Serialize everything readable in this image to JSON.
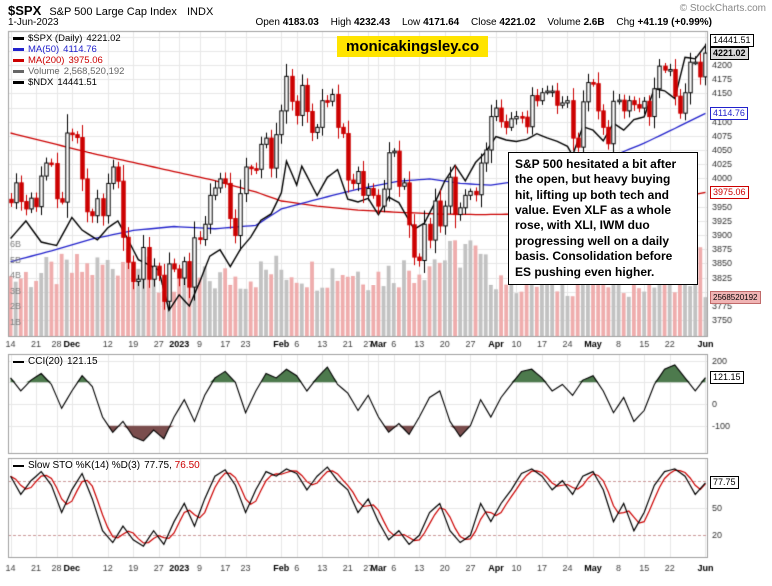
{
  "header": {
    "symbol": "$SPX",
    "name": "S&P 500 Large Cap Index",
    "exchange": "INDX",
    "copyright": "© StockCharts.com",
    "date": "1-Jun-2023",
    "quote": [
      {
        "label": "Open",
        "value": "4183.03"
      },
      {
        "label": "High",
        "value": "4232.43"
      },
      {
        "label": "Low",
        "value": "4171.64"
      },
      {
        "label": "Close",
        "value": "4221.02"
      },
      {
        "label": "Volume",
        "value": "2.6B"
      },
      {
        "label": "Chg",
        "value": "+41.19 (+0.99%)"
      }
    ]
  },
  "watermark": "monicakingsley.co",
  "annotation": "S&P 500 hesitated a bit after the open, but heavy buying hit, lifting up both tech and value. Even XLF as a whole rose, with XLI, IWM duo progressing well on a daily basis. Consolidation before ES pushing even higher.",
  "legend": {
    "main": [
      {
        "label": "$SPX (Daily)",
        "value": "4221.02",
        "color": "#000000"
      },
      {
        "label": "MA(50)",
        "value": "4114.76",
        "color": "#2222cc"
      },
      {
        "label": "MA(200)",
        "value": "3975.06",
        "color": "#cc0000"
      },
      {
        "label": "Volume",
        "value": "2,568,520,192",
        "color": "#666666"
      },
      {
        "label": "$NDX",
        "value": "14441.51",
        "color": "#000000"
      }
    ],
    "cci": {
      "label": "CCI(20)",
      "value": "121.15"
    },
    "sto": {
      "label": "Slow STO %K(14) %D(3)",
      "k": "77.75",
      "separator": ", ",
      "d": "76.50"
    }
  },
  "axis_boxes": {
    "ndx": "14441.51",
    "close": "4221.02",
    "ma50": "4114.76",
    "ma200": "3975.06",
    "volume": "2568520192",
    "cci": "121.15",
    "sto": "77.75"
  },
  "chart_data": {
    "type": "candlestick",
    "title": "$SPX S&P 500 Large Cap Index (Daily) with MA(50), MA(200), Volume, $NDX overlay, CCI(20) and Slow Stochastic",
    "x_start": "14-Nov-2022",
    "x_end": "1-Jun-2023",
    "ylim": [
      3720,
      4260
    ],
    "price_grid": {
      "min": 3750,
      "max": 4250,
      "step": 25,
      "hidden_labels": [
        4250,
        4225,
        4125,
        3975,
        3800
      ]
    },
    "volume_axis_labels": [
      "1B",
      "2B",
      "3B",
      "4B",
      "5B",
      "6B"
    ],
    "x_ticks": [
      {
        "i": 0,
        "l": "14"
      },
      {
        "i": 5,
        "l": "21"
      },
      {
        "i": 9,
        "l": "28"
      },
      {
        "i": 12,
        "l": "Dec",
        "b": 1
      },
      {
        "i": 19,
        "l": "12"
      },
      {
        "i": 24,
        "l": "19"
      },
      {
        "i": 29,
        "l": "27"
      },
      {
        "i": 33,
        "l": "2023",
        "b": 1
      },
      {
        "i": 37,
        "l": "9"
      },
      {
        "i": 42,
        "l": "17"
      },
      {
        "i": 46,
        "l": "23"
      },
      {
        "i": 53,
        "l": "Feb",
        "b": 1
      },
      {
        "i": 56,
        "l": "6"
      },
      {
        "i": 61,
        "l": "13"
      },
      {
        "i": 66,
        "l": "21"
      },
      {
        "i": 70,
        "l": "27"
      },
      {
        "i": 72,
        "l": "Mar",
        "b": 1
      },
      {
        "i": 75,
        "l": "6"
      },
      {
        "i": 80,
        "l": "13"
      },
      {
        "i": 85,
        "l": "20"
      },
      {
        "i": 90,
        "l": "27"
      },
      {
        "i": 95,
        "l": "Apr",
        "b": 1
      },
      {
        "i": 99,
        "l": "10"
      },
      {
        "i": 104,
        "l": "17"
      },
      {
        "i": 109,
        "l": "24"
      },
      {
        "i": 114,
        "l": "May",
        "b": 1
      },
      {
        "i": 119,
        "l": "8"
      },
      {
        "i": 124,
        "l": "15"
      },
      {
        "i": 129,
        "l": "22"
      },
      {
        "i": 136,
        "l": "Jun",
        "b": 1
      }
    ],
    "closes": [
      3957,
      3992,
      3959,
      3946,
      3965,
      3950,
      4004,
      4027,
      4026,
      3964,
      3958,
      4080,
      4077,
      4072,
      3999,
      3941,
      3934,
      3964,
      3934,
      3991,
      4020,
      3995,
      3896,
      3852,
      3818,
      3822,
      3878,
      3822,
      3845,
      3829,
      3783,
      3849,
      3840,
      3824,
      3853,
      3808,
      3895,
      3892,
      3919,
      3970,
      3983,
      3999,
      3991,
      3929,
      3899,
      3973,
      4020,
      4017,
      4016,
      4060,
      4071,
      4018,
      4077,
      4119,
      4180,
      4136,
      4111,
      4164,
      4118,
      4081,
      4090,
      4137,
      4136,
      4148,
      4090,
      4079,
      3997,
      3991,
      4012,
      3970,
      3982,
      3970,
      3951,
      3981,
      4045,
      4048,
      3986,
      3992,
      3918,
      3861,
      3855,
      3919,
      3891,
      3960,
      3916,
      3951,
      4002,
      3936,
      3948,
      3970,
      3977,
      3971,
      4027,
      4050,
      4109,
      4124,
      4100,
      4090,
      4105,
      4109,
      4108,
      4091,
      4146,
      4137,
      4151,
      4154,
      4154,
      4129,
      4133,
      4137,
      4071,
      4055,
      4135,
      4169,
      4167,
      4119,
      4090,
      4061,
      4136,
      4138,
      4119,
      4137,
      4130,
      4124,
      4136,
      4109,
      4158,
      4198,
      4191,
      4192,
      4145,
      4115,
      4151,
      4205,
      4205,
      4179,
      4221.02
    ],
    "ma50_points": [
      [
        0,
        3853
      ],
      [
        8,
        3872
      ],
      [
        16,
        3893
      ],
      [
        24,
        3908
      ],
      [
        32,
        3915
      ],
      [
        40,
        3911
      ],
      [
        48,
        3917
      ],
      [
        53,
        3946
      ],
      [
        60,
        3963
      ],
      [
        68,
        3981
      ],
      [
        76,
        3995
      ],
      [
        82,
        3999
      ],
      [
        88,
        3991
      ],
      [
        94,
        3988
      ],
      [
        100,
        3996
      ],
      [
        106,
        4008
      ],
      [
        112,
        4022
      ],
      [
        118,
        4040
      ],
      [
        124,
        4062
      ],
      [
        130,
        4088
      ],
      [
        136,
        4114.76
      ]
    ],
    "ma200_points": [
      [
        0,
        4080
      ],
      [
        8,
        4062
      ],
      [
        16,
        4044
      ],
      [
        24,
        4028
      ],
      [
        32,
        4012
      ],
      [
        40,
        3996
      ],
      [
        48,
        3976
      ],
      [
        53,
        3960
      ],
      [
        60,
        3951
      ],
      [
        68,
        3944
      ],
      [
        76,
        3940
      ],
      [
        84,
        3937
      ],
      [
        92,
        3936
      ],
      [
        100,
        3937
      ],
      [
        108,
        3941
      ],
      [
        116,
        3947
      ],
      [
        124,
        3956
      ],
      [
        130,
        3965
      ],
      [
        136,
        3975.06
      ]
    ],
    "ndx": {
      "scale_min": 10300,
      "scale_max": 14650,
      "points": [
        [
          0,
          11700
        ],
        [
          3,
          11950
        ],
        [
          6,
          11650
        ],
        [
          9,
          11600
        ],
        [
          12,
          12000
        ],
        [
          14,
          11820
        ],
        [
          17,
          11680
        ],
        [
          19,
          11850
        ],
        [
          21,
          11950
        ],
        [
          23,
          11680
        ],
        [
          25,
          11400
        ],
        [
          27,
          11330
        ],
        [
          29,
          11250
        ],
        [
          31,
          10680
        ],
        [
          33,
          10900
        ],
        [
          35,
          10740
        ],
        [
          37,
          11080
        ],
        [
          39,
          11450
        ],
        [
          41,
          11540
        ],
        [
          43,
          11300
        ],
        [
          45,
          11550
        ],
        [
          47,
          11720
        ],
        [
          49,
          11960
        ],
        [
          51,
          12050
        ],
        [
          53,
          12350
        ],
        [
          54,
          12800
        ],
        [
          56,
          12460
        ],
        [
          57,
          12730
        ],
        [
          60,
          12310
        ],
        [
          62,
          12570
        ],
        [
          64,
          12680
        ],
        [
          66,
          12260
        ],
        [
          68,
          12220
        ],
        [
          70,
          12270
        ],
        [
          72,
          12040
        ],
        [
          74,
          12290
        ],
        [
          76,
          12210
        ],
        [
          79,
          11830
        ],
        [
          81,
          11920
        ],
        [
          83,
          12200
        ],
        [
          85,
          12520
        ],
        [
          87,
          12740
        ],
        [
          89,
          12520
        ],
        [
          91,
          12780
        ],
        [
          93,
          12930
        ],
        [
          95,
          13150
        ],
        [
          97,
          13100
        ],
        [
          99,
          13080
        ],
        [
          101,
          13110
        ],
        [
          103,
          13190
        ],
        [
          105,
          13130
        ],
        [
          107,
          13080
        ],
        [
          109,
          13010
        ],
        [
          110,
          12880
        ],
        [
          112,
          13290
        ],
        [
          114,
          13240
        ],
        [
          116,
          13090
        ],
        [
          118,
          13340
        ],
        [
          120,
          13240
        ],
        [
          122,
          13390
        ],
        [
          124,
          13430
        ],
        [
          126,
          13830
        ],
        [
          128,
          13800
        ],
        [
          130,
          13690
        ],
        [
          132,
          14277
        ],
        [
          134,
          14254
        ],
        [
          136,
          14441.51
        ]
      ]
    },
    "volume_anchors": [
      [
        0,
        3.8
      ],
      [
        10,
        4.2
      ],
      [
        20,
        4.6
      ],
      [
        24,
        6.1
      ],
      [
        28,
        3.4
      ],
      [
        32,
        2.8
      ],
      [
        36,
        3.6
      ],
      [
        45,
        3.9
      ],
      [
        53,
        4.4
      ],
      [
        60,
        4.1
      ],
      [
        66,
        4.3
      ],
      [
        72,
        4.0
      ],
      [
        80,
        4.6
      ],
      [
        84,
        5.2
      ],
      [
        86,
        5.0
      ],
      [
        89,
        5.9
      ],
      [
        93,
        4.3
      ],
      [
        100,
        3.6
      ],
      [
        106,
        3.5
      ],
      [
        112,
        3.6
      ],
      [
        118,
        3.7
      ],
      [
        124,
        3.5
      ],
      [
        129,
        3.9
      ],
      [
        133,
        4.1
      ],
      [
        135,
        4.9
      ],
      [
        136,
        2.57
      ]
    ],
    "cci": {
      "levels": [
        200,
        100,
        0,
        -100
      ],
      "label_levels": [
        200,
        0,
        -100
      ],
      "ylim": [
        -230,
        230
      ],
      "last": 121.15,
      "points": [
        [
          0,
          120
        ],
        [
          2,
          60
        ],
        [
          4,
          110
        ],
        [
          6,
          140
        ],
        [
          8,
          90
        ],
        [
          10,
          -20
        ],
        [
          12,
          60
        ],
        [
          14,
          130
        ],
        [
          16,
          80
        ],
        [
          18,
          -60
        ],
        [
          20,
          -130
        ],
        [
          22,
          -80
        ],
        [
          24,
          -150
        ],
        [
          26,
          -170
        ],
        [
          28,
          -120
        ],
        [
          30,
          -160
        ],
        [
          32,
          -60
        ],
        [
          34,
          20
        ],
        [
          36,
          -80
        ],
        [
          38,
          40
        ],
        [
          40,
          120
        ],
        [
          42,
          150
        ],
        [
          44,
          100
        ],
        [
          46,
          -40
        ],
        [
          48,
          60
        ],
        [
          50,
          140
        ],
        [
          52,
          120
        ],
        [
          54,
          160
        ],
        [
          56,
          130
        ],
        [
          58,
          60
        ],
        [
          60,
          120
        ],
        [
          62,
          170
        ],
        [
          64,
          90
        ],
        [
          66,
          50
        ],
        [
          68,
          -30
        ],
        [
          70,
          40
        ],
        [
          72,
          -60
        ],
        [
          74,
          -130
        ],
        [
          76,
          -90
        ],
        [
          78,
          -140
        ],
        [
          80,
          -60
        ],
        [
          82,
          30
        ],
        [
          84,
          60
        ],
        [
          86,
          -80
        ],
        [
          88,
          -150
        ],
        [
          90,
          -100
        ],
        [
          92,
          20
        ],
        [
          94,
          -60
        ],
        [
          96,
          30
        ],
        [
          98,
          90
        ],
        [
          100,
          150
        ],
        [
          102,
          160
        ],
        [
          104,
          120
        ],
        [
          106,
          60
        ],
        [
          108,
          90
        ],
        [
          110,
          40
        ],
        [
          112,
          110
        ],
        [
          114,
          130
        ],
        [
          116,
          60
        ],
        [
          118,
          -40
        ],
        [
          120,
          30
        ],
        [
          122,
          -80
        ],
        [
          124,
          -30
        ],
        [
          126,
          90
        ],
        [
          128,
          160
        ],
        [
          130,
          180
        ],
        [
          132,
          120
        ],
        [
          134,
          60
        ],
        [
          136,
          121.15
        ]
      ]
    },
    "sto": {
      "levels": [
        80,
        50,
        20
      ],
      "label_levels": [
        50,
        20
      ],
      "dashed": [
        80,
        20
      ],
      "ylim": [
        -5,
        105
      ],
      "k_last": 77.75,
      "d_last": 76.5,
      "k_points": [
        [
          0,
          85
        ],
        [
          2,
          65
        ],
        [
          4,
          80
        ],
        [
          6,
          90
        ],
        [
          8,
          75
        ],
        [
          10,
          45
        ],
        [
          12,
          70
        ],
        [
          14,
          88
        ],
        [
          16,
          60
        ],
        [
          18,
          25
        ],
        [
          20,
          12
        ],
        [
          22,
          30
        ],
        [
          24,
          15
        ],
        [
          26,
          8
        ],
        [
          28,
          25
        ],
        [
          30,
          10
        ],
        [
          32,
          35
        ],
        [
          34,
          55
        ],
        [
          36,
          30
        ],
        [
          38,
          60
        ],
        [
          40,
          85
        ],
        [
          42,
          92
        ],
        [
          44,
          75
        ],
        [
          46,
          45
        ],
        [
          48,
          70
        ],
        [
          50,
          90
        ],
        [
          52,
          85
        ],
        [
          54,
          93
        ],
        [
          56,
          88
        ],
        [
          58,
          70
        ],
        [
          60,
          85
        ],
        [
          62,
          95
        ],
        [
          64,
          80
        ],
        [
          66,
          70
        ],
        [
          68,
          45
        ],
        [
          70,
          60
        ],
        [
          72,
          35
        ],
        [
          74,
          15
        ],
        [
          76,
          25
        ],
        [
          78,
          10
        ],
        [
          80,
          20
        ],
        [
          82,
          45
        ],
        [
          84,
          55
        ],
        [
          86,
          25
        ],
        [
          88,
          12
        ],
        [
          90,
          20
        ],
        [
          92,
          55
        ],
        [
          94,
          35
        ],
        [
          96,
          55
        ],
        [
          98,
          70
        ],
        [
          100,
          88
        ],
        [
          102,
          93
        ],
        [
          104,
          85
        ],
        [
          106,
          70
        ],
        [
          108,
          80
        ],
        [
          110,
          65
        ],
        [
          112,
          85
        ],
        [
          114,
          90
        ],
        [
          116,
          70
        ],
        [
          118,
          35
        ],
        [
          120,
          55
        ],
        [
          122,
          25
        ],
        [
          124,
          45
        ],
        [
          126,
          75
        ],
        [
          128,
          90
        ],
        [
          130,
          93
        ],
        [
          132,
          85
        ],
        [
          134,
          65
        ],
        [
          136,
          77.75
        ]
      ]
    },
    "last_values": {
      "close": 4221.02,
      "ma50": 4114.76,
      "ma200": 3975.06,
      "ndx": 14441.51,
      "volume_billions": 2.5685,
      "cci": 121.15,
      "sto_k": 77.75
    },
    "colors": {
      "up": "#000000",
      "down": "#cc0000",
      "ma50": "#2222cc",
      "ma200": "#cc0000",
      "ndx": "#000000",
      "vol_up": "#c2c2c2",
      "vol_down": "#efadad",
      "grid": "#e8e8e8",
      "frame": "#a0a0a0",
      "cci_fill_high": "#4d7a4d",
      "cci_fill_low": "#7a4d4d",
      "sto_dash": "#cc9999"
    }
  }
}
